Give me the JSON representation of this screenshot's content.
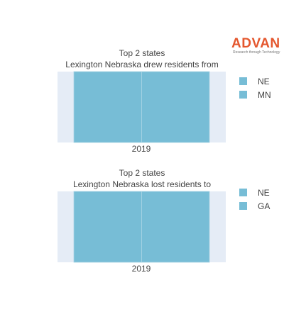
{
  "logo": {
    "word": "ADVAN",
    "tagline": "Research through Technology",
    "color": "#e4572e"
  },
  "colors": {
    "plot_background": "#e5ecf6",
    "bar": "#77bdd6",
    "bar_divider": "#a9d4e4"
  },
  "chart_data": [
    {
      "type": "bar",
      "barmode": "stack",
      "title_line1": "Top 2 states",
      "title_line2": "Lexington Nebraska drew residents from",
      "categories": [
        "2019"
      ],
      "series": [
        {
          "name": "NE",
          "values": [
            1
          ]
        },
        {
          "name": "MN",
          "values": [
            1
          ]
        }
      ],
      "legend_placement": "right",
      "grid": false
    },
    {
      "type": "bar",
      "barmode": "stack",
      "title_line1": "Top 2 states",
      "title_line2": "Lexington Nebraska lost residents to",
      "categories": [
        "2019"
      ],
      "series": [
        {
          "name": "NE",
          "values": [
            1
          ]
        },
        {
          "name": "GA",
          "values": [
            1
          ]
        }
      ],
      "legend_placement": "right",
      "grid": false
    }
  ]
}
